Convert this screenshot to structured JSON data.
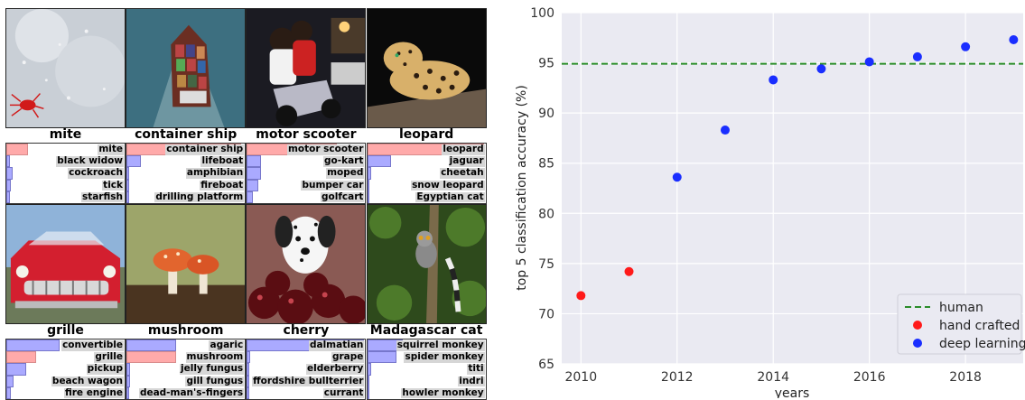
{
  "grid": [
    {
      "title": "mite",
      "image": "mite-photo",
      "correct": 0,
      "preds": [
        {
          "label": "mite",
          "p": 0.18
        },
        {
          "label": "black widow",
          "p": 0.03
        },
        {
          "label": "cockroach",
          "p": 0.05
        },
        {
          "label": "tick",
          "p": 0.04
        },
        {
          "label": "starfish",
          "p": 0.03
        }
      ]
    },
    {
      "title": "container ship",
      "image": "container-ship-photo",
      "correct": 0,
      "preds": [
        {
          "label": "container ship",
          "p": 0.97
        },
        {
          "label": "lifeboat",
          "p": 0.12
        },
        {
          "label": "amphibian",
          "p": 0.02
        },
        {
          "label": "fireboat",
          "p": 0.02
        },
        {
          "label": "drilling platform",
          "p": 0.02
        }
      ]
    },
    {
      "title": "motor scooter",
      "image": "motor-scooter-photo",
      "correct": 0,
      "preds": [
        {
          "label": "motor scooter",
          "p": 0.76
        },
        {
          "label": "go-kart",
          "p": 0.12
        },
        {
          "label": "moped",
          "p": 0.12
        },
        {
          "label": "bumper car",
          "p": 0.1
        },
        {
          "label": "golfcart",
          "p": 0.05
        }
      ]
    },
    {
      "title": "leopard",
      "image": "leopard-photo",
      "correct": 0,
      "preds": [
        {
          "label": "leopard",
          "p": 0.99
        },
        {
          "label": "jaguar",
          "p": 0.2
        },
        {
          "label": "cheetah",
          "p": 0.03
        },
        {
          "label": "snow leopard",
          "p": 0.02
        },
        {
          "label": "Egyptian cat",
          "p": 0.01
        }
      ]
    },
    {
      "title": "grille",
      "image": "grille-photo",
      "correct": 1,
      "preds": [
        {
          "label": "convertible",
          "p": 0.45
        },
        {
          "label": "grille",
          "p": 0.25
        },
        {
          "label": "pickup",
          "p": 0.17
        },
        {
          "label": "beach wagon",
          "p": 0.06
        },
        {
          "label": "fire engine",
          "p": 0.04
        }
      ]
    },
    {
      "title": "mushroom",
      "image": "mushroom-photo",
      "correct": 1,
      "preds": [
        {
          "label": "agaric",
          "p": 0.42
        },
        {
          "label": "mushroom",
          "p": 0.42
        },
        {
          "label": "jelly fungus",
          "p": 0.03
        },
        {
          "label": "gill fungus",
          "p": 0.03
        },
        {
          "label": "dead-man's-fingers",
          "p": 0.02
        }
      ]
    },
    {
      "title": "cherry",
      "image": "cherry-photo",
      "correct": -1,
      "preds": [
        {
          "label": "dalmatian",
          "p": 0.99
        },
        {
          "label": "grape",
          "p": 0.03
        },
        {
          "label": "elderberry",
          "p": 0.02
        },
        {
          "label": "ffordshire bullterrier",
          "p": 0.02
        },
        {
          "label": "currant",
          "p": 0.02
        }
      ]
    },
    {
      "title": "Madagascar cat",
      "image": "madagascar-cat-photo",
      "correct": -1,
      "preds": [
        {
          "label": "squirrel monkey",
          "p": 0.3
        },
        {
          "label": "spider monkey",
          "p": 0.25
        },
        {
          "label": "titi",
          "p": 0.03
        },
        {
          "label": "indri",
          "p": 0.02
        },
        {
          "label": "howler monkey",
          "p": 0.02
        }
      ]
    }
  ],
  "colors": {
    "correct_bar": "#ffaaaa",
    "other_bar": "#aaaaff",
    "correct_edge": "#d98c8c",
    "other_edge": "#7777cc"
  },
  "chart_data": {
    "type": "scatter",
    "xlabel": "years",
    "ylabel": "top 5 classification accuracy (%)",
    "xlim": [
      2009.6,
      2019.2
    ],
    "ylim": [
      65,
      100
    ],
    "xticks": [
      2010,
      2012,
      2014,
      2016,
      2018
    ],
    "yticks": [
      65,
      70,
      75,
      80,
      85,
      90,
      95,
      100
    ],
    "grid": true,
    "legend": "bottom-right",
    "reference_line": {
      "name": "human",
      "y": 94.9,
      "style": "dashed",
      "color": "#2a8c2a"
    },
    "series": [
      {
        "name": "hand crafted",
        "color": "#ff1a1a",
        "x": [
          2010,
          2011
        ],
        "y": [
          71.8,
          74.2
        ]
      },
      {
        "name": "deep learning",
        "color": "#1a2eff",
        "x": [
          2012,
          2013,
          2014,
          2015,
          2016,
          2017,
          2018,
          2019
        ],
        "y": [
          83.6,
          88.3,
          93.3,
          94.4,
          95.1,
          95.6,
          96.6,
          97.3
        ]
      }
    ]
  }
}
